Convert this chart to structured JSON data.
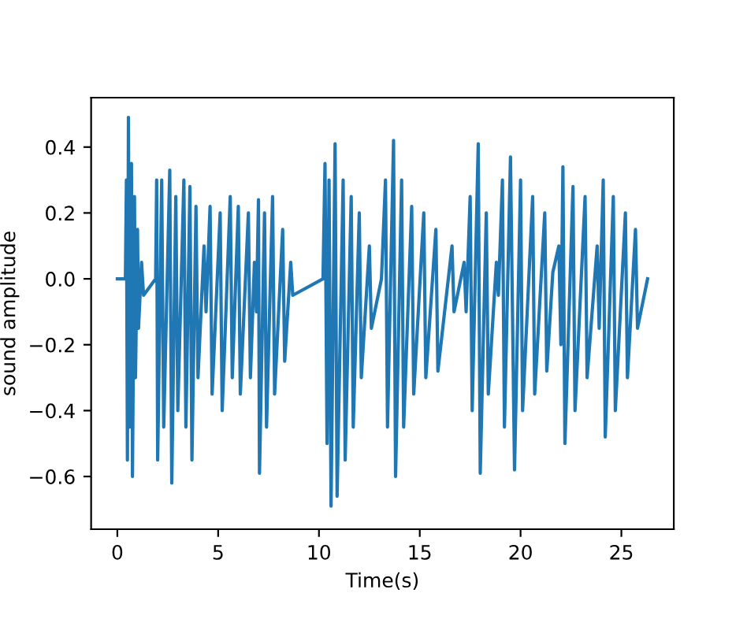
{
  "chart_data": {
    "type": "line",
    "xlabel": "Time(s)",
    "ylabel": "sound amplitude",
    "xlim": [
      -1.3,
      27.6
    ],
    "ylim": [
      -0.76,
      0.55
    ],
    "xticks": [
      0,
      5,
      10,
      15,
      20,
      25
    ],
    "yticks": [
      {
        "value": -0.6,
        "label": "−0.6"
      },
      {
        "value": -0.4,
        "label": "−0.4"
      },
      {
        "value": -0.2,
        "label": "−0.2"
      },
      {
        "value": 0,
        "label": "0.0"
      },
      {
        "value": 0.2,
        "label": "0.2"
      },
      {
        "value": 0.4,
        "label": "0.4"
      }
    ],
    "grid": false,
    "marker": "none",
    "line_style": "solid",
    "series": [
      {
        "color": "#1f77b4",
        "x": [
          0,
          0.4,
          0.45,
          0.5,
          0.55,
          0.6,
          0.7,
          0.75,
          0.85,
          0.9,
          1.0,
          1.05,
          1.2,
          1.3,
          1.9,
          1.95,
          2.0,
          2.2,
          2.3,
          2.6,
          2.7,
          2.9,
          3.0,
          3.3,
          3.4,
          3.6,
          3.7,
          3.9,
          4.0,
          4.3,
          4.4,
          4.6,
          4.7,
          5.1,
          5.2,
          5.6,
          5.7,
          6.0,
          6.1,
          6.5,
          6.6,
          6.8,
          6.9,
          7.0,
          7.05,
          7.3,
          7.4,
          7.7,
          7.8,
          8.2,
          8.3,
          8.6,
          8.7,
          10.2,
          10.3,
          10.4,
          10.5,
          10.6,
          10.8,
          10.9,
          11.2,
          11.3,
          11.6,
          11.7,
          12.0,
          12.1,
          12.5,
          12.6,
          13.1,
          13.3,
          13.4,
          13.7,
          13.8,
          14.1,
          14.2,
          14.6,
          14.7,
          15.2,
          15.3,
          15.8,
          15.9,
          16.6,
          16.7,
          17.2,
          17.3,
          17.5,
          17.6,
          17.9,
          18.0,
          18.3,
          18.4,
          18.8,
          18.9,
          19.1,
          19.2,
          19.5,
          19.7,
          20.0,
          20.1,
          20.6,
          20.7,
          21.2,
          21.3,
          21.6,
          21.9,
          22.0,
          22.1,
          22.2,
          22.6,
          22.7,
          23.2,
          23.3,
          23.8,
          23.9,
          24.1,
          24.2,
          24.6,
          24.7,
          25.2,
          25.3,
          25.7,
          25.8,
          26.3
        ],
        "values": [
          0,
          0,
          0.3,
          -0.55,
          0.49,
          -0.45,
          0.35,
          -0.6,
          0.25,
          -0.3,
          0.15,
          -0.15,
          0.05,
          -0.05,
          0,
          0.3,
          -0.55,
          0.3,
          -0.45,
          0.33,
          -0.62,
          0.25,
          -0.4,
          0.3,
          -0.45,
          0.28,
          -0.55,
          0.22,
          -0.3,
          0.1,
          -0.1,
          0.22,
          -0.35,
          0.2,
          -0.4,
          0.25,
          -0.3,
          0.22,
          -0.35,
          0.2,
          -0.3,
          0.05,
          -0.1,
          0.24,
          -0.59,
          0.2,
          -0.45,
          0.25,
          -0.35,
          0.15,
          -0.25,
          0.05,
          -0.05,
          0,
          0.35,
          -0.5,
          0.3,
          -0.69,
          0.41,
          -0.66,
          0.3,
          -0.55,
          0.25,
          -0.45,
          0.2,
          -0.3,
          0.1,
          -0.15,
          0,
          0.3,
          -0.45,
          0.42,
          -0.6,
          0.3,
          -0.45,
          0.22,
          -0.35,
          0.2,
          -0.3,
          0.15,
          -0.28,
          0.1,
          -0.1,
          0.05,
          -0.1,
          0.25,
          -0.4,
          0.41,
          -0.59,
          0.2,
          -0.35,
          0.05,
          -0.05,
          0.3,
          -0.45,
          0.37,
          -0.58,
          0.3,
          -0.4,
          0.25,
          -0.35,
          0.2,
          -0.28,
          0.02,
          0.1,
          -0.2,
          0.34,
          -0.5,
          0.28,
          -0.4,
          0.25,
          -0.3,
          0.1,
          -0.15,
          0.3,
          -0.48,
          0.25,
          -0.4,
          0.2,
          -0.3,
          0.15,
          -0.15,
          0
        ]
      }
    ]
  }
}
